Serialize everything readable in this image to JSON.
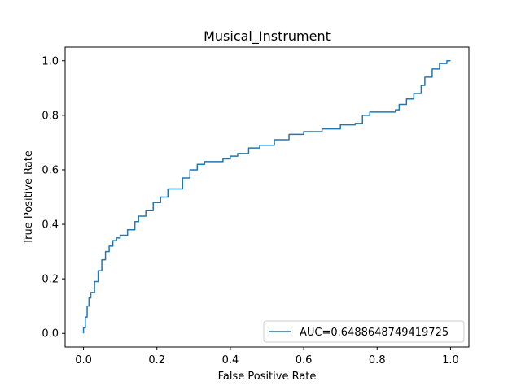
{
  "chart_data": {
    "type": "line",
    "title": "Musical_Instrument",
    "xlabel": "False Positive Rate",
    "ylabel": "True Positive Rate",
    "xlim": [
      -0.05,
      1.05
    ],
    "ylim": [
      -0.05,
      1.05
    ],
    "xticks": [
      0.0,
      0.2,
      0.4,
      0.6,
      0.8,
      1.0
    ],
    "yticks": [
      0.0,
      0.2,
      0.4,
      0.6,
      0.8,
      1.0
    ],
    "xtick_labels": [
      "0.0",
      "0.2",
      "0.4",
      "0.6",
      "0.8",
      "1.0"
    ],
    "ytick_labels": [
      "0.0",
      "0.2",
      "0.4",
      "0.6",
      "0.8",
      "1.0"
    ],
    "grid": false,
    "legend_position": "lower right",
    "series": [
      {
        "name": "AUC=0.6488648749419725",
        "color": "#1f77b4",
        "x": [
          0.0,
          0.0,
          0.005,
          0.005,
          0.01,
          0.01,
          0.015,
          0.015,
          0.02,
          0.02,
          0.03,
          0.03,
          0.04,
          0.04,
          0.05,
          0.05,
          0.06,
          0.06,
          0.07,
          0.07,
          0.08,
          0.08,
          0.09,
          0.09,
          0.1,
          0.1,
          0.12,
          0.12,
          0.14,
          0.14,
          0.15,
          0.15,
          0.17,
          0.17,
          0.19,
          0.19,
          0.21,
          0.21,
          0.23,
          0.23,
          0.25,
          0.25,
          0.27,
          0.27,
          0.29,
          0.29,
          0.31,
          0.31,
          0.33,
          0.33,
          0.35,
          0.35,
          0.38,
          0.38,
          0.4,
          0.4,
          0.42,
          0.42,
          0.45,
          0.45,
          0.48,
          0.48,
          0.52,
          0.52,
          0.56,
          0.56,
          0.6,
          0.6,
          0.65,
          0.65,
          0.7,
          0.7,
          0.74,
          0.74,
          0.76,
          0.76,
          0.78,
          0.78,
          0.85,
          0.85,
          0.86,
          0.86,
          0.88,
          0.88,
          0.9,
          0.9,
          0.92,
          0.92,
          0.93,
          0.93,
          0.95,
          0.95,
          0.97,
          0.97,
          0.99,
          0.99,
          1.0
        ],
        "y": [
          0.0,
          0.02,
          0.02,
          0.06,
          0.06,
          0.1,
          0.1,
          0.13,
          0.13,
          0.15,
          0.15,
          0.19,
          0.19,
          0.23,
          0.23,
          0.27,
          0.27,
          0.3,
          0.3,
          0.32,
          0.32,
          0.34,
          0.34,
          0.35,
          0.35,
          0.36,
          0.36,
          0.38,
          0.38,
          0.41,
          0.41,
          0.43,
          0.43,
          0.45,
          0.45,
          0.48,
          0.48,
          0.5,
          0.5,
          0.53,
          0.53,
          0.53,
          0.53,
          0.57,
          0.57,
          0.6,
          0.6,
          0.62,
          0.62,
          0.63,
          0.63,
          0.63,
          0.63,
          0.64,
          0.64,
          0.65,
          0.65,
          0.66,
          0.66,
          0.68,
          0.68,
          0.69,
          0.69,
          0.71,
          0.71,
          0.73,
          0.73,
          0.74,
          0.74,
          0.75,
          0.75,
          0.765,
          0.765,
          0.77,
          0.77,
          0.8,
          0.8,
          0.812,
          0.812,
          0.82,
          0.82,
          0.84,
          0.84,
          0.86,
          0.86,
          0.88,
          0.88,
          0.91,
          0.91,
          0.94,
          0.94,
          0.97,
          0.97,
          0.99,
          0.99,
          1.0,
          1.0
        ]
      }
    ]
  }
}
